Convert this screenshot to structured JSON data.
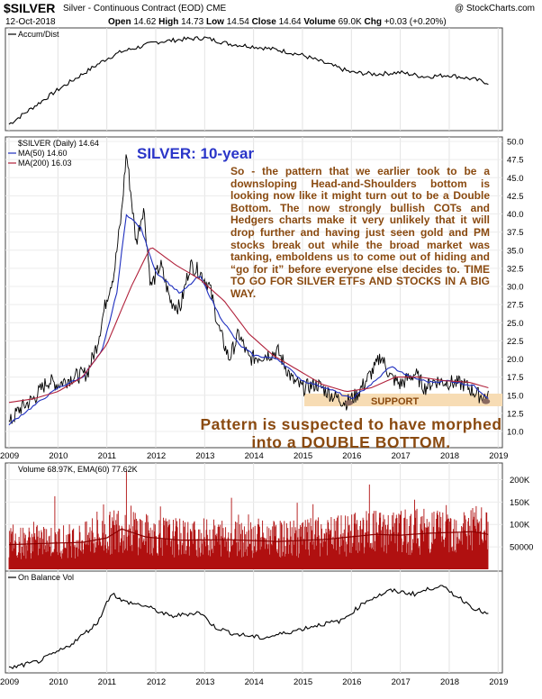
{
  "header": {
    "symbol": "$SILVER",
    "description": "Silver - Continuous Contract (EOD)  CME",
    "date": "12-Oct-2018",
    "open_label": "Open",
    "open": "14.62",
    "high_label": "High",
    "high": "14.73",
    "low_label": "Low",
    "low": "14.54",
    "close_label": "Close",
    "close": "14.64",
    "volume_label": "Volume",
    "volume": "69.0K",
    "chg_label": "Chg",
    "chg": "+0.03 (+0.20%)",
    "brand": "@ StockCharts.com"
  },
  "panels": {
    "accum_label": "Accum/Dist",
    "price_label": "$SILVER (Daily) 14.64",
    "ma50_label": "MA(50) 14.60",
    "ma200_label": "MA(200) 16.03",
    "volume_label": "Volume 68.97K, EMA(60) 77.62K",
    "obv_label": "On Balance Vol"
  },
  "annotations": {
    "title": "SILVER: 10-year",
    "note": "So - the pattern that we earlier took to be a downsloping Head-and-Shoulders bottom is looking now like it might turn out to be a Double Bottom. The now strongly bullish COTs and Hedgers charts make it very unlikely that it will drop further and having just seen gold and PM stocks break out while the broad market was tanking, emboldens us to come out of hiding and “go for it” before everyone else decides to. TIME TO GO FOR SILVER ETFs AND STOCKS IN A BIG WAY.",
    "support": "SUPPORT",
    "pattern": "Pattern is suspected to have morphed into a DOUBLE BOTTOM."
  },
  "colors": {
    "price": "#000000",
    "ma50": "#1f2fbf",
    "ma200": "#b0203a",
    "volume_bars": "#b01010",
    "support_band": "#f7dcb4",
    "annotation_text": "#8a4a10",
    "title_text": "#2a35c8",
    "marker": "#8a6a60"
  },
  "chart_data": [
    {
      "type": "line",
      "title": "Accum/Dist",
      "x": [
        2009.0,
        2010.0,
        2011.0,
        2011.3,
        2011.7,
        2012.0,
        2012.5,
        2013.0,
        2013.5,
        2014.0,
        2014.5,
        2015.0,
        2015.5,
        2016.0,
        2016.5,
        2017.0,
        2017.5,
        2018.0,
        2018.5,
        2018.8
      ],
      "y": [
        0.0,
        0.4,
        0.76,
        0.84,
        0.9,
        0.95,
        0.98,
        1.0,
        0.93,
        0.9,
        0.86,
        0.8,
        0.7,
        0.6,
        0.58,
        0.6,
        0.55,
        0.57,
        0.52,
        0.48
      ],
      "x_ticks": [
        "2009",
        "2010",
        "2011",
        "2012",
        "2013",
        "2014",
        "2015",
        "2016",
        "2017",
        "2018",
        "2019"
      ]
    },
    {
      "type": "line",
      "title": "$SILVER (Daily) 14.64",
      "x_ticks": [
        "2009",
        "2010",
        "2011",
        "2012",
        "2013",
        "2014",
        "2015",
        "2016",
        "2017",
        "2018",
        "2019"
      ],
      "y_ticks": [
        "50.0",
        "47.5",
        "45.0",
        "42.5",
        "40.0",
        "37.5",
        "35.0",
        "32.5",
        "30.0",
        "27.5",
        "25.0",
        "22.5",
        "20.0",
        "17.5",
        "15.0",
        "12.5",
        "10.0"
      ],
      "series": [
        {
          "name": "$SILVER",
          "x": [
            2009.0,
            2009.2,
            2009.5,
            2009.8,
            2010.0,
            2010.3,
            2010.6,
            2010.8,
            2011.0,
            2011.15,
            2011.3,
            2011.4,
            2011.6,
            2011.75,
            2011.9,
            2012.1,
            2012.3,
            2012.5,
            2012.7,
            2012.9,
            2013.1,
            2013.3,
            2013.5,
            2013.7,
            2013.9,
            2014.2,
            2014.5,
            2014.8,
            2015.0,
            2015.3,
            2015.6,
            2015.9,
            2016.1,
            2016.3,
            2016.5,
            2016.6,
            2016.8,
            2017.0,
            2017.3,
            2017.5,
            2017.7,
            2018.0,
            2018.3,
            2018.6,
            2018.8
          ],
          "y": [
            11.0,
            13.0,
            14.5,
            17.0,
            16.5,
            17.5,
            18.0,
            22.0,
            28.5,
            32.0,
            40.0,
            48.5,
            36.0,
            41.0,
            30.0,
            33.0,
            28.0,
            27.0,
            33.0,
            32.0,
            30.0,
            24.0,
            20.0,
            23.5,
            20.0,
            20.5,
            21.0,
            17.0,
            16.0,
            16.5,
            15.0,
            14.0,
            15.0,
            17.0,
            19.0,
            20.5,
            17.5,
            16.5,
            18.0,
            16.0,
            17.0,
            16.8,
            16.5,
            15.0,
            14.64
          ]
        },
        {
          "name": "MA(50) 14.60",
          "x": [
            2009.0,
            2009.5,
            2010.0,
            2010.5,
            2010.9,
            2011.2,
            2011.4,
            2011.7,
            2012.0,
            2012.5,
            2012.9,
            2013.3,
            2013.7,
            2014.0,
            2014.5,
            2015.0,
            2015.5,
            2016.0,
            2016.5,
            2016.8,
            2017.2,
            2017.6,
            2018.0,
            2018.5,
            2018.8
          ],
          "y": [
            11.0,
            13.5,
            16.0,
            17.5,
            21.0,
            29.0,
            40.0,
            38.0,
            32.0,
            29.0,
            31.5,
            26.0,
            22.0,
            20.5,
            20.0,
            17.0,
            16.0,
            14.5,
            17.0,
            19.0,
            17.5,
            16.8,
            17.0,
            16.3,
            14.6
          ]
        },
        {
          "name": "MA(200) 16.03",
          "x": [
            2009.0,
            2009.5,
            2010.0,
            2010.5,
            2011.0,
            2011.5,
            2011.9,
            2012.4,
            2012.9,
            2013.4,
            2013.9,
            2014.4,
            2014.9,
            2015.4,
            2015.9,
            2016.4,
            2016.9,
            2017.4,
            2017.9,
            2018.4,
            2018.8
          ],
          "y": [
            14.0,
            14.5,
            15.5,
            17.5,
            22.0,
            30.0,
            35.5,
            33.0,
            31.0,
            28.0,
            23.5,
            20.5,
            18.5,
            16.5,
            15.5,
            16.0,
            17.5,
            17.5,
            17.0,
            16.8,
            16.03
          ]
        }
      ]
    },
    {
      "type": "bar",
      "title": "Volume 68.97K, EMA(60) 77.62K",
      "x_ticks": [
        "2009",
        "2010",
        "2011",
        "2012",
        "2013",
        "2014",
        "2015",
        "2016",
        "2017",
        "2018",
        "2019"
      ],
      "y_ticks": [
        "200K",
        "150K",
        "100K",
        "50000"
      ],
      "series": [
        {
          "name": "EMA(60) 77.62K",
          "x": [
            2009.0,
            2009.8,
            2010.5,
            2011.0,
            2011.3,
            2011.8,
            2012.5,
            2013.5,
            2014.5,
            2015.5,
            2016.5,
            2017.0,
            2017.5,
            2018.0,
            2018.5,
            2018.8
          ],
          "y": [
            55000,
            58000,
            60000,
            70000,
            90000,
            72000,
            65000,
            66000,
            62000,
            67000,
            78000,
            76000,
            80000,
            82000,
            84000,
            77620
          ]
        }
      ]
    },
    {
      "type": "line",
      "title": "On Balance Vol",
      "x": [
        2009.0,
        2009.6,
        2010.2,
        2010.8,
        2011.1,
        2011.3,
        2011.8,
        2012.3,
        2012.9,
        2013.2,
        2013.6,
        2014.2,
        2014.8,
        2015.3,
        2015.8,
        2016.3,
        2016.8,
        2017.3,
        2017.8,
        2018.2,
        2018.5,
        2018.8
      ],
      "y": [
        0.0,
        0.08,
        0.25,
        0.52,
        0.88,
        0.78,
        0.72,
        0.6,
        0.65,
        0.48,
        0.4,
        0.35,
        0.43,
        0.5,
        0.55,
        0.78,
        0.9,
        0.86,
        0.96,
        0.82,
        0.7,
        0.62
      ],
      "x_ticks": [
        "2009",
        "2010",
        "2011",
        "2012",
        "2013",
        "2014",
        "2015",
        "2016",
        "2017",
        "2018",
        "2019"
      ]
    }
  ]
}
